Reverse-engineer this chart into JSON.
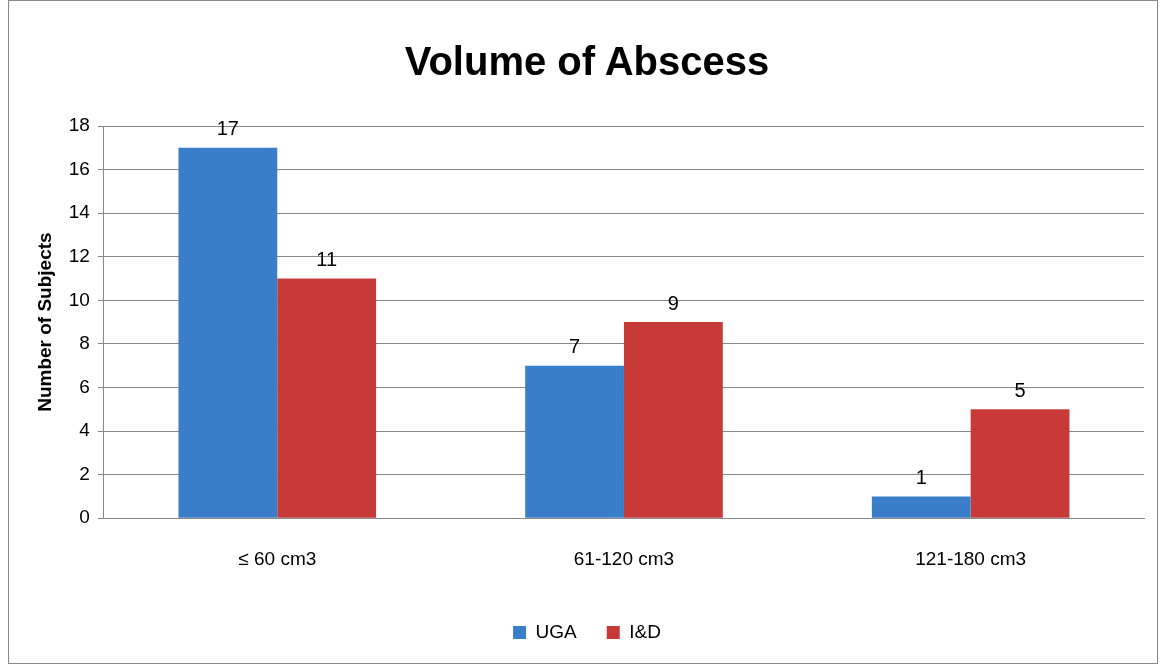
{
  "chart_data": {
    "type": "bar",
    "title": "Volume of Abscess",
    "ylabel": "Number of Subjects",
    "categories": [
      "≤ 60 cm3",
      "61-120 cm3",
      "121-180 cm3"
    ],
    "series": [
      {
        "name": "UGA",
        "color": "#3a7dc9",
        "values": [
          17,
          7,
          1
        ]
      },
      {
        "name": "I&D",
        "color": "#c83a38",
        "values": [
          11,
          9,
          5
        ]
      }
    ],
    "ylim": [
      0,
      18
    ],
    "yticks": [
      0,
      2,
      4,
      6,
      8,
      10,
      12,
      14,
      16,
      18
    ],
    "grid": "y",
    "legend": "bottom",
    "data_labels": true
  }
}
